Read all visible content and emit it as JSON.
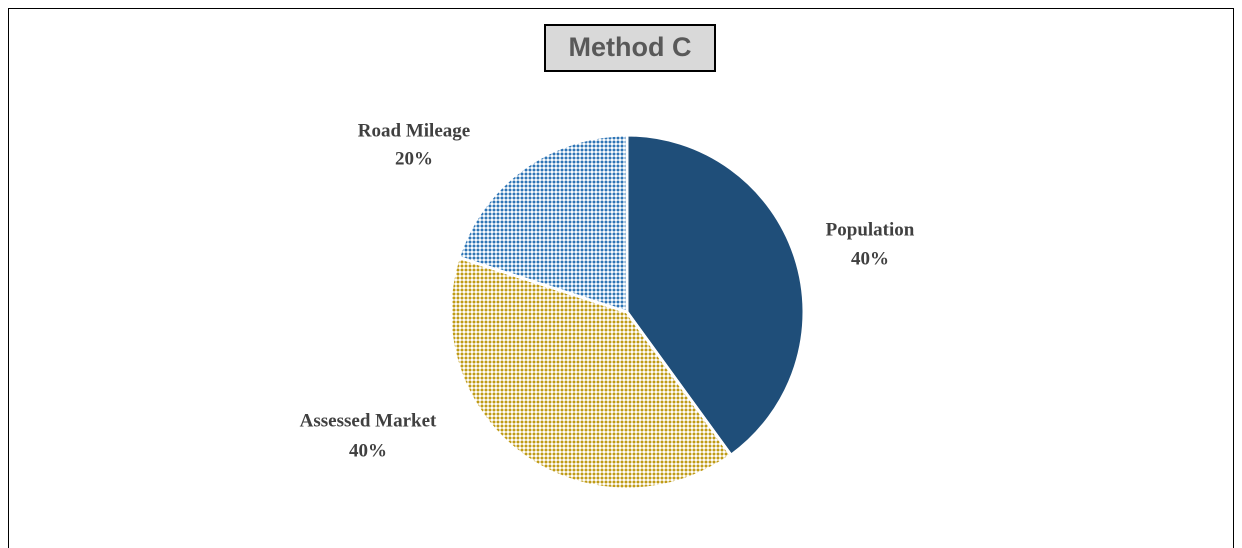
{
  "chart_data": {
    "type": "pie",
    "title": "Method C",
    "categories": [
      "Population",
      "Assessed Market",
      "Road Mileage"
    ],
    "values": [
      40,
      40,
      20
    ],
    "value_labels": [
      "40%",
      "40%",
      "20%"
    ],
    "colors": [
      "#1f4e79",
      "#bf9b16",
      "#2e75b6"
    ],
    "fills": [
      "solid",
      "dots",
      "dots"
    ]
  }
}
